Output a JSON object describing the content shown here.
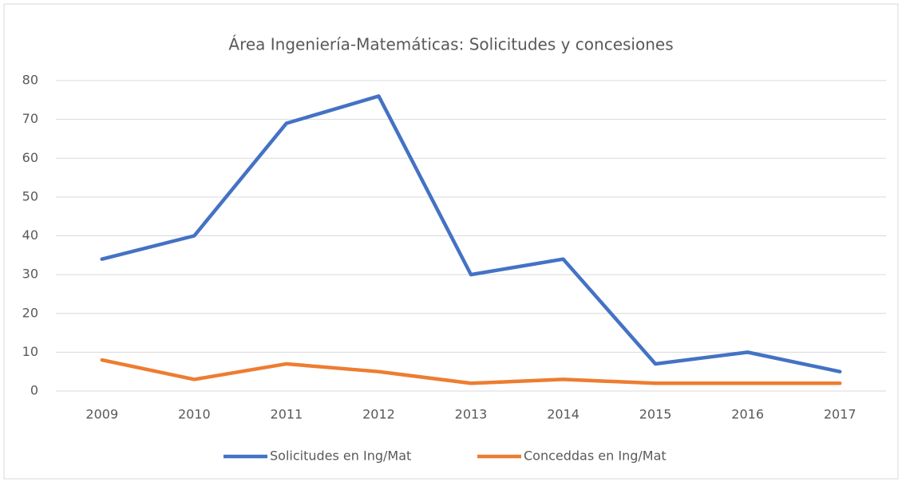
{
  "chart_data": {
    "type": "line",
    "title": "Área Ingeniería-Matemáticas: Solicitudes y concesiones",
    "categories": [
      "2009",
      "2010",
      "2011",
      "2012",
      "2013",
      "2014",
      "2015",
      "2016",
      "2017"
    ],
    "series": [
      {
        "name": "Solicitudes en Ing/Mat",
        "color": "#4472c4",
        "values": [
          34,
          40,
          69,
          76,
          30,
          34,
          7,
          10,
          5
        ]
      },
      {
        "name": "Conceddas en Ing/Mat",
        "color": "#ed7d31",
        "values": [
          8,
          3,
          7,
          5,
          2,
          3,
          2,
          2,
          2
        ]
      }
    ],
    "ylim": [
      0,
      80
    ],
    "yticks": [
      0,
      10,
      20,
      30,
      40,
      50,
      60,
      70,
      80
    ],
    "grid": true,
    "legend": "bottom"
  }
}
